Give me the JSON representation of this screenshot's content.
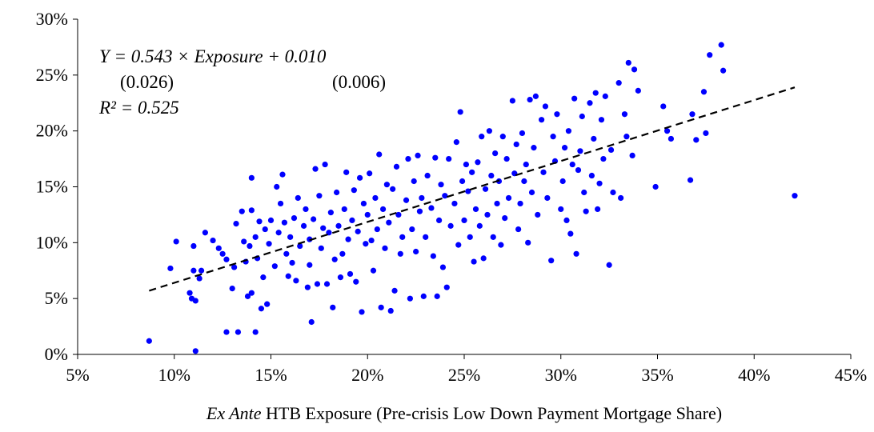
{
  "chart_data": {
    "type": "scatter",
    "annotations": [
      "Y = 0.543 × Exposure + 0.010",
      "(0.026)",
      "(0.006)",
      "R² = 0.525"
    ],
    "x_label": [
      "Ex Ante",
      " HTB Exposure (Pre-crisis Low Down Payment Mortgage Share)"
    ],
    "xlim": [
      5,
      45
    ],
    "ylim": [
      0,
      30
    ],
    "xticks": [
      {
        "value": 5,
        "label": "5%"
      },
      {
        "value": 10,
        "label": "10%"
      },
      {
        "value": 15,
        "label": "15%"
      },
      {
        "value": 20,
        "label": "20%"
      },
      {
        "value": 25,
        "label": "25%"
      },
      {
        "value": 30,
        "label": "30%"
      },
      {
        "value": 35,
        "label": "35%"
      },
      {
        "value": 40,
        "label": "40%"
      },
      {
        "value": 45,
        "label": "45%"
      }
    ],
    "yticks": [
      {
        "value": 0,
        "label": "0%"
      },
      {
        "value": 5,
        "label": "5%"
      },
      {
        "value": 10,
        "label": "10%"
      },
      {
        "value": 15,
        "label": "15%"
      },
      {
        "value": 20,
        "label": "20%"
      },
      {
        "value": 25,
        "label": "25%"
      },
      {
        "value": 30,
        "label": "30%"
      }
    ],
    "grid": false,
    "color": "#0000ff",
    "x": [
      8.7,
      11.1,
      9.8,
      10.1,
      11.0,
      10.8,
      10.9,
      11.1,
      11.0,
      11.3,
      11.4,
      11.6,
      12.0,
      12.3,
      12.5,
      12.7,
      12.7,
      13.3,
      13.0,
      13.1,
      13.2,
      13.5,
      13.6,
      13.7,
      13.8,
      13.9,
      14.0,
      14.0,
      14.0,
      14.2,
      14.2,
      14.3,
      14.4,
      14.5,
      14.6,
      14.7,
      14.8,
      14.9,
      15.0,
      15.2,
      15.3,
      15.4,
      15.5,
      15.6,
      15.7,
      15.8,
      15.9,
      16.0,
      16.1,
      16.2,
      16.3,
      16.4,
      16.5,
      16.7,
      16.8,
      16.9,
      17.0,
      17.0,
      17.1,
      17.2,
      17.3,
      17.4,
      17.5,
      17.6,
      17.7,
      17.8,
      17.9,
      18.0,
      18.1,
      18.2,
      18.3,
      18.4,
      18.5,
      18.6,
      18.7,
      18.8,
      18.9,
      19.0,
      19.1,
      19.2,
      19.3,
      19.4,
      19.5,
      19.6,
      19.7,
      19.8,
      19.9,
      20.0,
      20.1,
      20.2,
      20.3,
      20.4,
      20.5,
      20.6,
      20.7,
      20.8,
      20.9,
      21.0,
      21.1,
      21.2,
      21.3,
      21.4,
      21.5,
      21.6,
      21.7,
      21.8,
      22.0,
      22.1,
      22.2,
      22.3,
      22.4,
      22.5,
      22.6,
      22.7,
      22.8,
      22.9,
      23.0,
      23.1,
      23.3,
      23.4,
      23.5,
      23.6,
      23.7,
      23.8,
      23.9,
      24.0,
      24.1,
      24.2,
      24.3,
      24.5,
      24.6,
      24.7,
      24.8,
      24.9,
      25.0,
      25.1,
      25.2,
      25.3,
      25.4,
      25.5,
      25.6,
      25.7,
      25.8,
      25.9,
      26.0,
      26.1,
      26.2,
      26.3,
      26.4,
      26.5,
      26.6,
      26.7,
      26.8,
      26.9,
      27.0,
      27.1,
      27.2,
      27.3,
      27.5,
      27.6,
      27.7,
      27.8,
      27.9,
      28.0,
      28.1,
      28.2,
      28.3,
      28.4,
      28.5,
      28.6,
      28.7,
      28.8,
      29.0,
      29.1,
      29.2,
      29.3,
      29.5,
      29.6,
      29.7,
      29.8,
      30.0,
      30.1,
      30.2,
      30.3,
      30.4,
      30.5,
      30.6,
      30.7,
      30.8,
      30.9,
      31.0,
      31.1,
      31.2,
      31.3,
      31.5,
      31.6,
      31.7,
      31.8,
      31.9,
      32.0,
      32.1,
      32.2,
      32.3,
      32.5,
      32.6,
      32.7,
      33.0,
      33.1,
      33.3,
      33.4,
      33.5,
      33.7,
      33.8,
      34.0,
      34.9,
      35.3,
      35.5,
      35.7,
      36.7,
      36.8,
      37.0,
      37.4,
      37.5,
      37.7,
      38.3,
      38.4,
      42.1
    ],
    "values": [
      1.2,
      0.3,
      7.7,
      10.1,
      9.7,
      5.5,
      5.0,
      4.8,
      7.5,
      6.8,
      7.5,
      10.9,
      10.2,
      9.5,
      9.0,
      8.5,
      2.0,
      2.0,
      5.9,
      7.8,
      11.7,
      12.8,
      10.1,
      8.3,
      5.2,
      9.7,
      5.5,
      12.9,
      15.8,
      2.0,
      10.5,
      8.6,
      11.9,
      4.1,
      6.9,
      11.2,
      4.5,
      9.9,
      12.0,
      7.9,
      15.0,
      10.9,
      13.5,
      16.1,
      11.8,
      9.0,
      7.0,
      10.5,
      8.2,
      12.2,
      6.6,
      14.0,
      9.7,
      11.5,
      13.0,
      6.0,
      8.0,
      10.3,
      2.9,
      12.1,
      16.6,
      6.3,
      14.2,
      9.5,
      11.3,
      17.0,
      6.3,
      10.9,
      12.7,
      4.2,
      8.5,
      14.5,
      11.5,
      6.9,
      9.0,
      13.0,
      16.3,
      10.3,
      7.2,
      12.0,
      14.7,
      6.5,
      11.0,
      15.8,
      3.8,
      13.5,
      9.9,
      12.5,
      16.2,
      10.2,
      7.5,
      14.0,
      11.2,
      17.9,
      4.2,
      13.0,
      9.5,
      15.2,
      11.8,
      3.9,
      14.8,
      5.7,
      16.8,
      12.5,
      9.0,
      10.5,
      13.8,
      17.5,
      5.0,
      11.2,
      15.5,
      9.2,
      17.8,
      12.8,
      14.0,
      5.2,
      10.5,
      16.0,
      13.1,
      8.8,
      17.6,
      5.2,
      12.0,
      15.2,
      7.8,
      14.2,
      6.0,
      17.5,
      11.5,
      13.5,
      19.0,
      9.8,
      21.7,
      15.5,
      12.0,
      17.0,
      14.6,
      10.5,
      16.3,
      8.3,
      13.0,
      17.2,
      11.5,
      19.5,
      8.6,
      14.8,
      12.5,
      20.0,
      16.0,
      10.5,
      18.0,
      13.5,
      15.5,
      9.8,
      19.5,
      12.2,
      17.5,
      14.0,
      22.7,
      16.2,
      18.8,
      11.2,
      13.5,
      19.8,
      15.5,
      17.0,
      10.0,
      22.8,
      14.5,
      18.5,
      23.1,
      12.5,
      21.0,
      16.3,
      22.2,
      14.0,
      8.4,
      19.5,
      17.3,
      21.5,
      13.0,
      15.5,
      18.5,
      12.0,
      20.0,
      10.8,
      17.0,
      22.9,
      9.0,
      16.5,
      18.2,
      21.3,
      14.5,
      12.8,
      22.5,
      16.0,
      19.3,
      23.4,
      13.0,
      15.3,
      21.0,
      17.5,
      23.1,
      8.0,
      18.3,
      14.5,
      24.3,
      14.0,
      21.5,
      19.5,
      26.1,
      17.8,
      25.5,
      23.6,
      15.0,
      22.2,
      20.0,
      19.3,
      15.6,
      21.5,
      19.2,
      23.5,
      19.8,
      26.8,
      27.7,
      25.4,
      14.2
    ],
    "trend": {
      "x": [
        8.7,
        42.1
      ],
      "values": [
        5.7,
        23.9
      ],
      "color": "#000000",
      "dashed": true
    }
  }
}
